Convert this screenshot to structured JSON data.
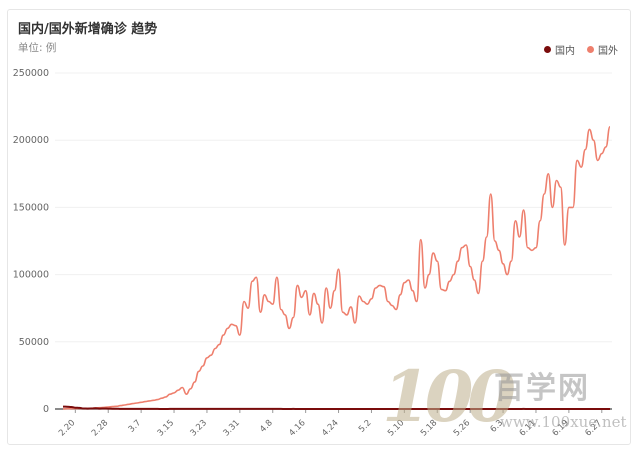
{
  "header": {
    "title": "国内/国外新增确诊 趋势",
    "unit": "单位: 例"
  },
  "legend": [
    {
      "name": "国内",
      "color": "#7a0c0c"
    },
    {
      "name": "国外",
      "color": "#ee7f6d"
    }
  ],
  "watermark": {
    "numerals": "100",
    "text": "百学网",
    "url": "www.100xue.net"
  },
  "chart_data": {
    "type": "line",
    "ylim": [
      0,
      250000
    ],
    "yticks": [
      "0",
      "50000",
      "100000",
      "150000",
      "200000",
      "250000"
    ],
    "yticks_values": [
      0,
      50000,
      100000,
      150000,
      200000,
      250000
    ],
    "x_ticks": [
      {
        "label": "2.20",
        "i": 3
      },
      {
        "label": "2.28",
        "i": 11
      },
      {
        "label": "3.7",
        "i": 19
      },
      {
        "label": "3.15",
        "i": 27
      },
      {
        "label": "3.23",
        "i": 35
      },
      {
        "label": "3.31",
        "i": 43
      },
      {
        "label": "4.8",
        "i": 51
      },
      {
        "label": "4.16",
        "i": 59
      },
      {
        "label": "4.24",
        "i": 67
      },
      {
        "label": "5.2",
        "i": 75
      },
      {
        "label": "5.10",
        "i": 83
      },
      {
        "label": "5.18",
        "i": 91
      },
      {
        "label": "5.26",
        "i": 99
      },
      {
        "label": "6.3",
        "i": 107
      },
      {
        "label": "6.11",
        "i": 115
      },
      {
        "label": "6.19",
        "i": 123
      },
      {
        "label": "6.27",
        "i": 131
      }
    ],
    "series": [
      {
        "name": "国内",
        "color": "#7a0c0c",
        "values": [
          1800,
          1700,
          1500,
          1000,
          800,
          400,
          300,
          400,
          500,
          300,
          400,
          300,
          200,
          200,
          100,
          100,
          100,
          100,
          100,
          100,
          60,
          60,
          40,
          40,
          30,
          30,
          40,
          40,
          50,
          60,
          70,
          80,
          90,
          100,
          100,
          80,
          70,
          60,
          60,
          50,
          50,
          50,
          40,
          40,
          40,
          40,
          60,
          80,
          80,
          90,
          80,
          60,
          50,
          40,
          30,
          30,
          40,
          30,
          20,
          20,
          20,
          20,
          20,
          10,
          10,
          10,
          10,
          10,
          10,
          10,
          5,
          5,
          5,
          5,
          5,
          5,
          5,
          5,
          5,
          5,
          5,
          5,
          5,
          10,
          10,
          10,
          10,
          10,
          5,
          5,
          5,
          5,
          5,
          5,
          5,
          5,
          5,
          5,
          5,
          5,
          5,
          5,
          5,
          5,
          5,
          5,
          5,
          5,
          5,
          10,
          20,
          30,
          40,
          30,
          20,
          20,
          20,
          20,
          20,
          10,
          10,
          10,
          10,
          10,
          10,
          10,
          10,
          10,
          10,
          10,
          10,
          10,
          10,
          10
        ]
      },
      {
        "name": "国外",
        "color": "#ee7f6d",
        "values": [
          100,
          200,
          300,
          300,
          400,
          500,
          500,
          600,
          800,
          1000,
          1200,
          1500,
          1800,
          2000,
          2500,
          3000,
          3500,
          4000,
          4500,
          5000,
          5500,
          6000,
          6500,
          7000,
          8000,
          9000,
          11000,
          12000,
          14000,
          16000,
          11000,
          15000,
          20000,
          28000,
          32000,
          38000,
          40000,
          45000,
          48000,
          55000,
          60000,
          63000,
          62000,
          55000,
          80000,
          75000,
          95000,
          98000,
          72000,
          85000,
          80000,
          78000,
          98000,
          74000,
          70000,
          60000,
          68000,
          92000,
          83000,
          88000,
          70000,
          86000,
          78000,
          64000,
          90000,
          75000,
          88000,
          104000,
          72000,
          70000,
          76000,
          64000,
          84000,
          80000,
          78000,
          82000,
          90000,
          92000,
          91000,
          80000,
          77000,
          74000,
          85000,
          94000,
          96000,
          88000,
          80000,
          126000,
          90000,
          100000,
          116000,
          110000,
          89000,
          88000,
          95000,
          100000,
          110000,
          120000,
          122000,
          106000,
          96000,
          86000,
          110000,
          128000,
          160000,
          125000,
          118000,
          108000,
          100000,
          110000,
          140000,
          128000,
          148000,
          120000,
          118000,
          120000,
          140000,
          160000,
          175000,
          150000,
          170000,
          165000,
          122000,
          150000,
          150000,
          185000,
          180000,
          193000,
          208000,
          200000,
          185000,
          190000,
          195000,
          210000
        ]
      }
    ]
  }
}
